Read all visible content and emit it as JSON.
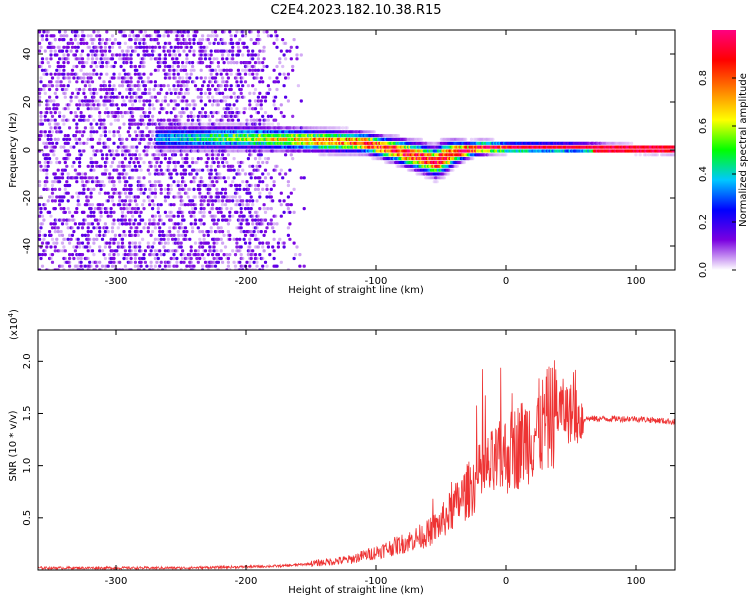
{
  "title": "C2E4.2023.182.10.38.R15",
  "chart_data": [
    {
      "type": "heatmap",
      "name": "spectrogram",
      "xlabel": "Height of straight line (km)",
      "ylabel": "Frequency (Hz)",
      "xlim": [
        -360,
        130
      ],
      "ylim": [
        -50,
        50
      ],
      "x_ticks": [
        -300,
        -200,
        -100,
        0,
        100
      ],
      "x_tick_labels": [
        "-300",
        "-200",
        "-100",
        "0",
        "100"
      ],
      "y_ticks": [
        -40,
        -20,
        0,
        20,
        40
      ],
      "y_tick_labels": [
        "-40",
        "-20",
        "0",
        "20",
        "40"
      ],
      "colorbar": {
        "label": "Normalized spectral amplitude",
        "range": [
          0,
          1
        ],
        "ticks": [
          0.0,
          0.2,
          0.4,
          0.6,
          0.8
        ],
        "tick_labels": [
          "0.0",
          "0.2",
          "0.4",
          "0.6",
          "0.8"
        ],
        "colors": [
          "#ffffff",
          "#7a00e0",
          "#0000ff",
          "#00c8ff",
          "#00ff00",
          "#ffff00",
          "#ff8000",
          "#ff0000",
          "#ff0080"
        ]
      },
      "noise_extent_km": [
        -360,
        -160
      ],
      "band": {
        "x_start": -270,
        "centre_hz": [
          [
            -270,
            5
          ],
          [
            -200,
            5
          ],
          [
            -150,
            4
          ],
          [
            -110,
            3
          ],
          [
            -80,
            -1
          ],
          [
            -55,
            -5
          ],
          [
            -40,
            -1
          ],
          [
            -20,
            1
          ],
          [
            0,
            1
          ],
          [
            50,
            1
          ],
          [
            130,
            0
          ]
        ],
        "half_width_hz": [
          [
            -270,
            5
          ],
          [
            -100,
            4
          ],
          [
            -50,
            6
          ],
          [
            -30,
            3
          ],
          [
            0,
            2
          ],
          [
            130,
            1.5
          ]
        ]
      }
    },
    {
      "type": "line",
      "name": "snr",
      "xlabel": "Height of straight line (km)",
      "ylabel": "SNR (10 * v/v)",
      "y_multiplier": "(x10",
      "y_multiplier_exp": "4",
      "y_multiplier_close": ")",
      "xlim": [
        -360,
        130
      ],
      "ylim": [
        0,
        2.3
      ],
      "x_ticks": [
        -300,
        -200,
        -100,
        0,
        100
      ],
      "x_tick_labels": [
        "-300",
        "-200",
        "-100",
        "0",
        "100"
      ],
      "y_ticks": [
        0.5,
        1.0,
        1.5,
        2.0
      ],
      "y_tick_labels": [
        "0.5",
        "1.0",
        "1.5",
        "2.0"
      ],
      "series": [
        {
          "name": "SNR",
          "color": "#ee3333",
          "x": [
            -360,
            -300,
            -250,
            -200,
            -170,
            -150,
            -120,
            -100,
            -80,
            -60,
            -50,
            -40,
            -30,
            -20,
            -10,
            0,
            10,
            20,
            30,
            40,
            50,
            60,
            80,
            100,
            130
          ],
          "y": [
            0.02,
            0.02,
            0.02,
            0.03,
            0.04,
            0.06,
            0.1,
            0.17,
            0.25,
            0.35,
            0.45,
            0.6,
            0.75,
            0.9,
            1.0,
            1.1,
            1.2,
            1.3,
            1.4,
            1.55,
            1.5,
            1.45,
            1.45,
            1.45,
            1.42
          ]
        }
      ]
    }
  ]
}
